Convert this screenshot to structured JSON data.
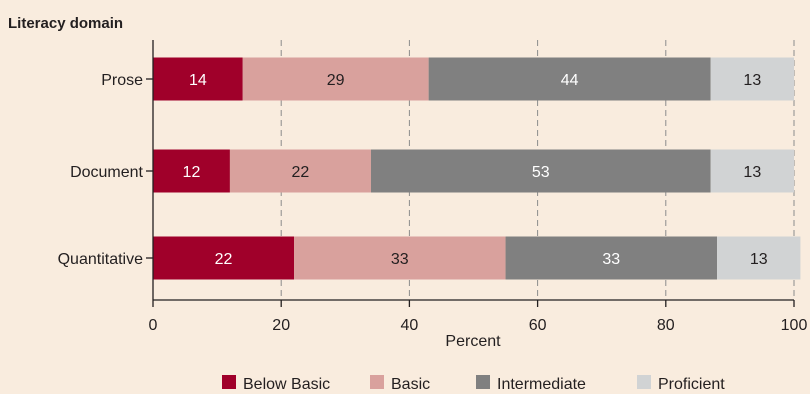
{
  "chart_data": {
    "type": "bar",
    "orientation": "horizontal",
    "stacked": true,
    "y_axis_title": "Literacy domain",
    "xlabel": "Percent",
    "xlim": [
      0,
      100
    ],
    "x_ticks": [
      0,
      20,
      40,
      60,
      80,
      100
    ],
    "grid": "vertical dashed",
    "legend_position": "bottom",
    "categories": [
      "Prose",
      "Document",
      "Quantitative"
    ],
    "series": [
      {
        "name": "Below Basic",
        "color": "#a0002a",
        "label_color": "#ffffff",
        "values": [
          14,
          12,
          22
        ]
      },
      {
        "name": "Basic",
        "color": "#d9a19d",
        "label_color": "#231f20",
        "values": [
          29,
          22,
          33
        ]
      },
      {
        "name": "Intermediate",
        "color": "#808080",
        "label_color": "#ffffff",
        "values": [
          44,
          53,
          33
        ]
      },
      {
        "name": "Proficient",
        "color": "#d1d3d4",
        "label_color": "#231f20",
        "values": [
          13,
          13,
          13
        ]
      }
    ]
  }
}
